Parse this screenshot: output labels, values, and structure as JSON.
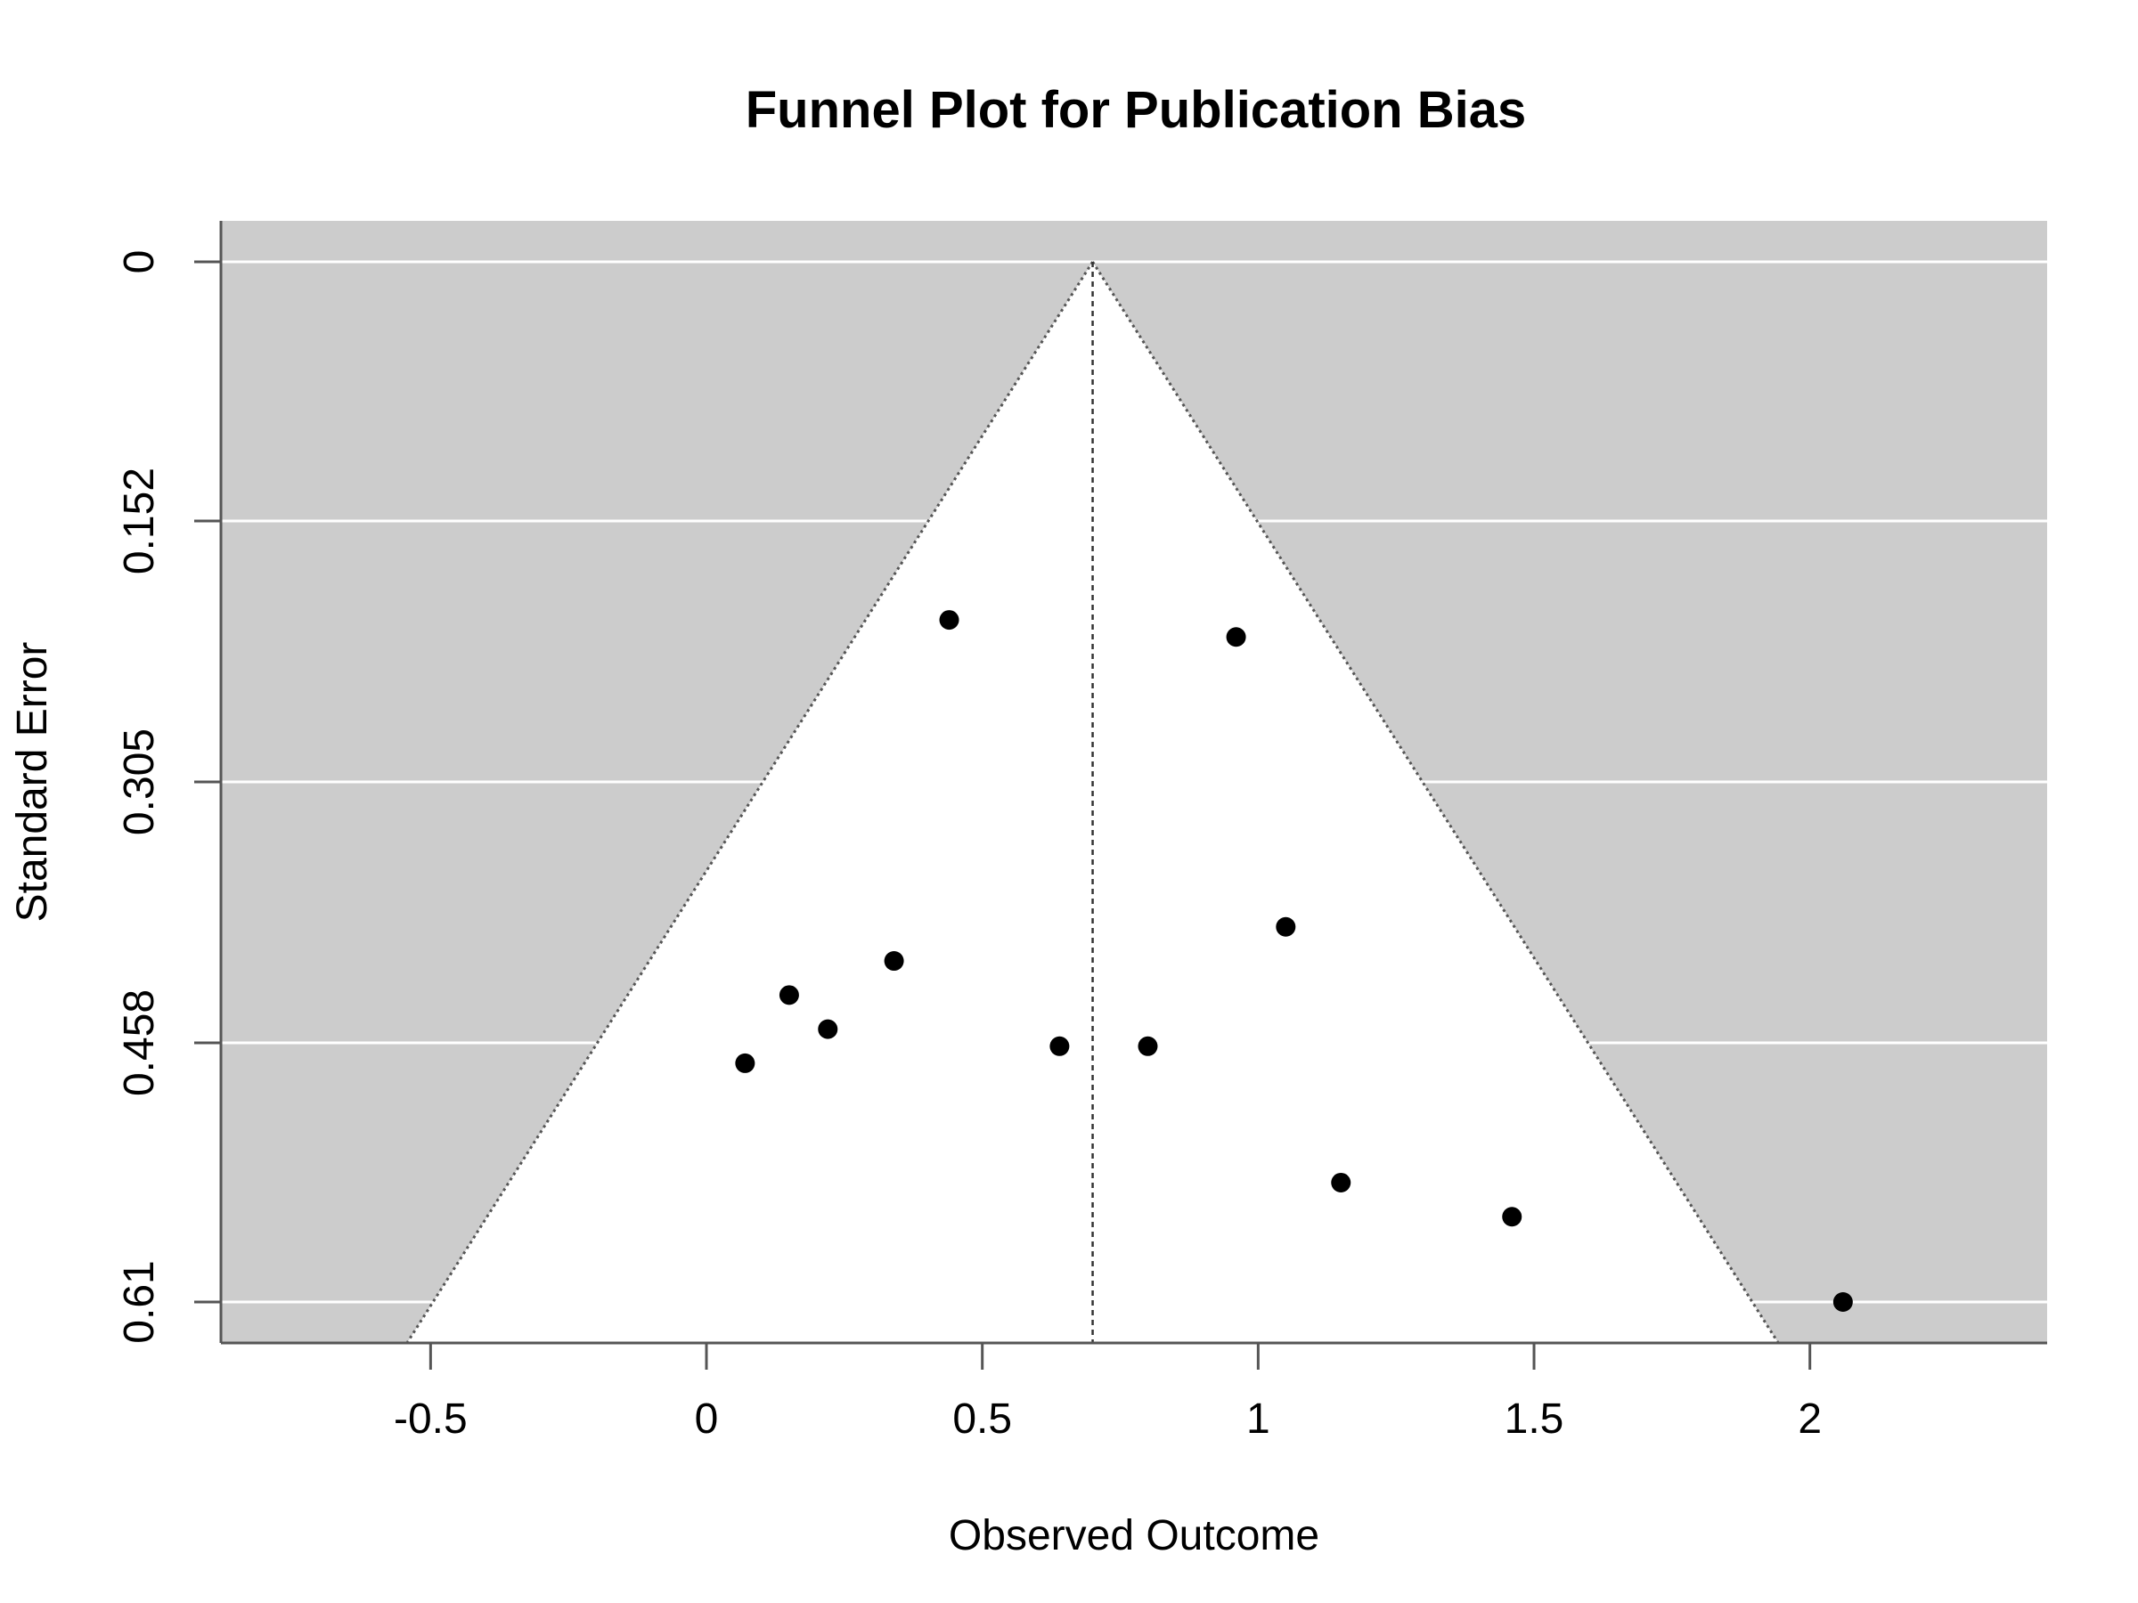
{
  "chart_data": {
    "type": "scatter",
    "title": "Funnel Plot for Publication Bias",
    "xlabel": "Observed Outcome",
    "ylabel": "Standard Error",
    "xlim": [
      -0.88,
      2.43
    ],
    "ylim": [
      0.61,
      0
    ],
    "y_reversed": true,
    "x_ticks": [
      -0.5,
      0,
      0.5,
      1,
      1.5,
      2
    ],
    "x_tick_labels": [
      "-0.5",
      "0",
      "0.5",
      "1",
      "1.5",
      "2"
    ],
    "y_ticks": [
      0,
      0.152,
      0.305,
      0.458,
      0.61
    ],
    "y_tick_labels": [
      "0",
      "0.152",
      "0.305",
      "0.458",
      "0.61"
    ],
    "grid": "horizontal",
    "summary_estimate": 0.7,
    "funnel_z": 1.96,
    "background_color": "#cccccc",
    "funnel_fill": "#ffffff",
    "points": [
      {
        "x": 0.44,
        "y": 0.21
      },
      {
        "x": 0.96,
        "y": 0.22
      },
      {
        "x": 1.05,
        "y": 0.39
      },
      {
        "x": 0.34,
        "y": 0.41
      },
      {
        "x": 0.15,
        "y": 0.43
      },
      {
        "x": 0.22,
        "y": 0.45
      },
      {
        "x": 0.07,
        "y": 0.47
      },
      {
        "x": 0.64,
        "y": 0.46
      },
      {
        "x": 0.8,
        "y": 0.46
      },
      {
        "x": 1.15,
        "y": 0.54
      },
      {
        "x": 1.46,
        "y": 0.56
      },
      {
        "x": 2.06,
        "y": 0.61
      }
    ]
  }
}
